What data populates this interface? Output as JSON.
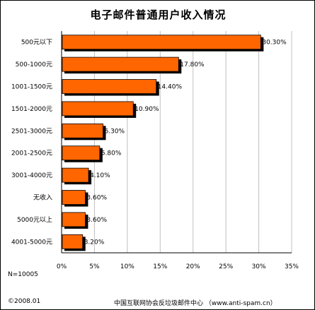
{
  "chart_data": {
    "type": "bar",
    "orientation": "horizontal",
    "title": "电子邮件普通用户收入情况",
    "categories": [
      "500元以下",
      "500-1000元",
      "1001-1500元",
      "1501-2000元",
      "2501-3000元",
      "2001-2500元",
      "3001-4000元",
      "无收入",
      "5000元以上",
      "4001-5000元"
    ],
    "values": [
      30.3,
      17.8,
      14.4,
      10.9,
      6.3,
      5.8,
      4.1,
      3.6,
      3.6,
      3.2
    ],
    "value_labels": [
      "30.30%",
      "17.80%",
      "14.40%",
      "10.90%",
      "6.30%",
      "5.80%",
      "4.10%",
      "3.60%",
      "3.60%",
      "3.20%"
    ],
    "x_ticks": [
      "0%",
      "5%",
      "10%",
      "15%",
      "20%",
      "25%",
      "30%",
      "35%"
    ],
    "xlim": [
      0,
      35
    ],
    "grid": true,
    "bar_color": "#ff6600",
    "shadow_color": "#000000"
  },
  "sample_size": "N=10005",
  "footer": {
    "date": "©2008.01",
    "source": "中国互联网协会反垃圾邮件中心 （www.anti-spam.cn）"
  }
}
